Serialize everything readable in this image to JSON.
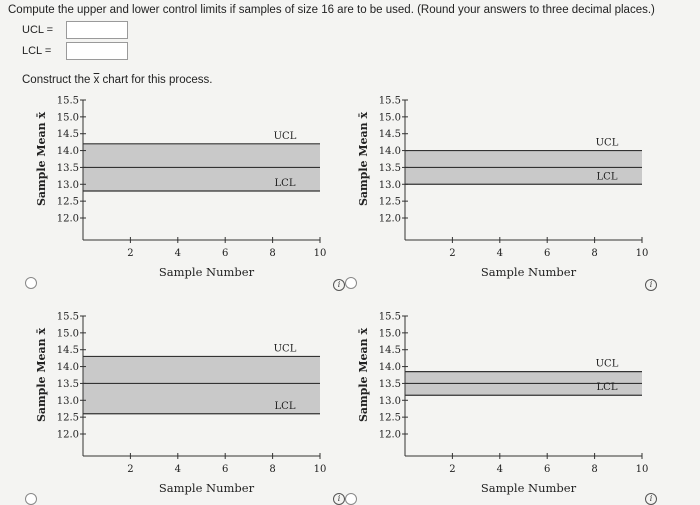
{
  "question": {
    "text": "Compute the upper and lower control limits if samples of size 16 are to be used. (Round your answers to three decimal places.)",
    "ucl_label": "UCL =",
    "lcl_label": "LCL =",
    "ucl_value": "",
    "lcl_value": ""
  },
  "construct": {
    "prefix": "Construct the ",
    "symbol": "x",
    "suffix": " chart for this process."
  },
  "chart_data": [
    {
      "type": "line",
      "ylabel": "Sample Mean x̄",
      "xlabel": "Sample Number",
      "yticks": [
        "15.5",
        "15.0",
        "14.5",
        "14.0",
        "13.5",
        "13.0",
        "12.5",
        "12.0"
      ],
      "xticks": [
        "2",
        "4",
        "6",
        "8",
        "10"
      ],
      "xlim": [
        0,
        10
      ],
      "ylim": [
        12.0,
        15.5
      ],
      "ucl": 14.2,
      "center": 13.5,
      "lcl": 12.8,
      "ucl_label": "UCL",
      "lcl_label": "LCL"
    },
    {
      "type": "line",
      "ylabel": "Sample Mean x̄",
      "xlabel": "Sample Number",
      "yticks": [
        "15.5",
        "15.0",
        "14.5",
        "14.0",
        "13.5",
        "13.0",
        "12.5",
        "12.0"
      ],
      "xticks": [
        "2",
        "4",
        "6",
        "8",
        "10"
      ],
      "xlim": [
        0,
        10
      ],
      "ylim": [
        12.0,
        15.5
      ],
      "ucl": 14.0,
      "center": 13.5,
      "lcl": 13.0,
      "ucl_label": "UCL",
      "lcl_label": "LCL"
    },
    {
      "type": "line",
      "ylabel": "Sample Mean x̄",
      "xlabel": "Sample Number",
      "yticks": [
        "15.5",
        "15.0",
        "14.5",
        "14.0",
        "13.5",
        "13.0",
        "12.5",
        "12.0"
      ],
      "xticks": [
        "2",
        "4",
        "6",
        "8",
        "10"
      ],
      "xlim": [
        0,
        10
      ],
      "ylim": [
        12.0,
        15.5
      ],
      "ucl": 14.3,
      "center": 13.5,
      "lcl": 12.6,
      "ucl_label": "UCL",
      "lcl_label": "LCL"
    },
    {
      "type": "line",
      "ylabel": "Sample Mean x̄",
      "xlabel": "Sample Number",
      "yticks": [
        "15.5",
        "15.0",
        "14.5",
        "14.0",
        "13.5",
        "13.0",
        "12.5",
        "12.0"
      ],
      "xticks": [
        "2",
        "4",
        "6",
        "8",
        "10"
      ],
      "xlim": [
        0,
        10
      ],
      "ylim": [
        12.0,
        15.5
      ],
      "ucl": 13.85,
      "center": 13.5,
      "lcl": 13.15,
      "ucl_label": "UCL",
      "lcl_label": "LCL"
    }
  ]
}
